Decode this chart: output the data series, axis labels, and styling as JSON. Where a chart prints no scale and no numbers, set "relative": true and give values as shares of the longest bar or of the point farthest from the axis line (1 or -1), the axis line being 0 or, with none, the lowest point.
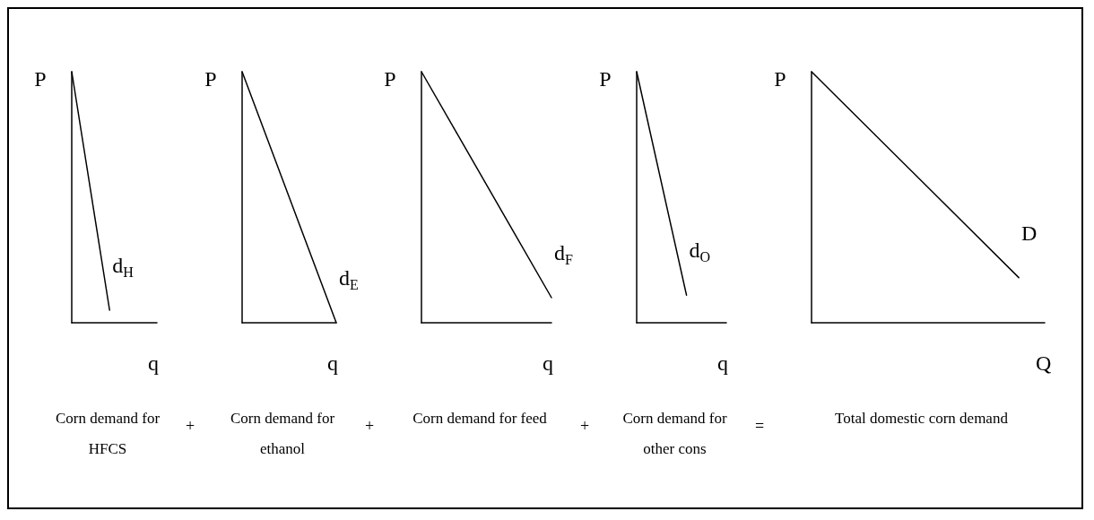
{
  "chart_data": [
    {
      "type": "line",
      "relative": true,
      "ylabel": "P",
      "xlabel": "q",
      "categories": [
        null,
        null,
        null,
        null,
        null,
        null,
        null,
        null,
        null,
        null
      ],
      "grid": false,
      "legend": false,
      "marker": "none",
      "line_style": "solid",
      "series": [
        {
          "name": "d$_{H}$",
          "color": "#000000",
          "values": [
            1,
            null,
            null,
            null,
            0.05,
            null,
            null,
            null,
            null,
            null
          ]
        }
      ],
      "annotations": [
        "Corn demand for HFCS",
        "+"
      ]
    },
    {
      "type": "line",
      "relative": true,
      "ylabel": "P",
      "xlabel": "q",
      "categories": [
        null,
        null,
        null,
        null,
        null,
        null,
        null,
        null,
        null,
        null
      ],
      "grid": false,
      "legend": false,
      "marker": "none",
      "line_style": "solid",
      "series": [
        {
          "name": "d$_{E}$",
          "color": "#000000",
          "values": [
            1,
            null,
            null,
            null,
            null,
            null,
            null,
            null,
            null,
            0
          ]
        }
      ],
      "annotations": [
        "Corn demand for ethanol",
        "+"
      ]
    },
    {
      "type": "line",
      "relative": true,
      "ylabel": "P",
      "xlabel": "q",
      "categories": [
        null,
        null,
        null,
        null,
        null,
        null,
        null,
        null,
        null,
        null
      ],
      "grid": false,
      "legend": false,
      "marker": "none",
      "line_style": "solid",
      "series": [
        {
          "name": "d$_{F}$",
          "color": "#000000",
          "values": [
            1,
            null,
            null,
            null,
            null,
            null,
            null,
            null,
            null,
            0.1
          ]
        }
      ],
      "annotations": [
        "Corn demand for feed",
        "+"
      ]
    },
    {
      "type": "line",
      "relative": true,
      "ylabel": "P",
      "xlabel": "q",
      "categories": [
        null,
        null,
        null,
        null,
        null,
        null,
        null,
        null,
        null,
        null
      ],
      "grid": false,
      "legend": false,
      "marker": "none",
      "line_style": "solid",
      "series": [
        {
          "name": "d$_{O}$",
          "color": "#000000",
          "values": [
            1,
            null,
            null,
            null,
            null,
            0.11,
            null,
            null,
            null,
            null
          ]
        }
      ],
      "annotations": [
        "Corn demand for other cons",
        "="
      ]
    },
    {
      "type": "line",
      "relative": true,
      "ylabel": "P",
      "xlabel": "Q",
      "categories": [
        null,
        null,
        null,
        null,
        null,
        null,
        null,
        null,
        null,
        null
      ],
      "grid": false,
      "legend": false,
      "marker": "none",
      "line_style": "solid",
      "series": [
        {
          "name": "D",
          "color": "#000000",
          "values": [
            1,
            null,
            null,
            null,
            null,
            null,
            null,
            null,
            0.18,
            null
          ]
        }
      ],
      "annotations": [
        "Total  domestic corn demand"
      ]
    }
  ]
}
